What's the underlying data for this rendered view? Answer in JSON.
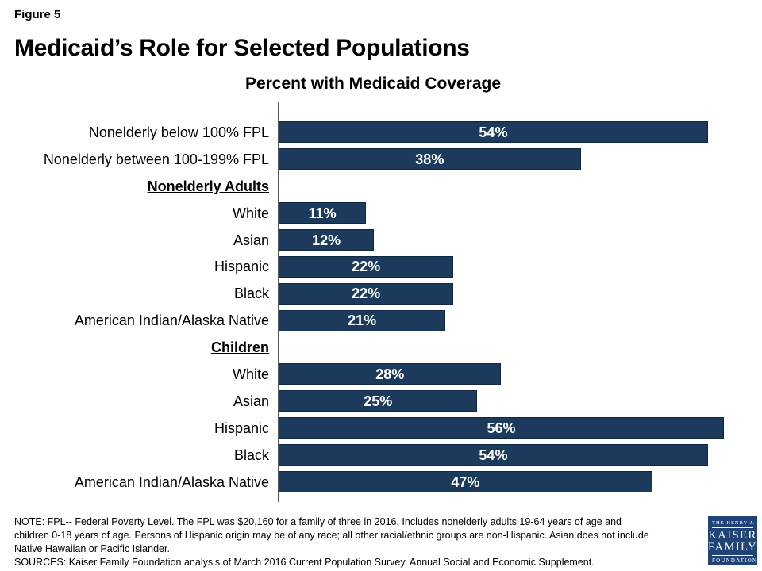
{
  "figure_label": "Figure 5",
  "title": "Medicaid’s Role for Selected Populations",
  "chart_data": {
    "type": "bar",
    "orientation": "horizontal",
    "title": "Percent with Medicaid Coverage",
    "unit": "%",
    "xlim": [
      0,
      60
    ],
    "grid": false,
    "legend": false,
    "bar_color": "#1b3a5c",
    "bar_border_color": "#0f2740",
    "value_labels": "centered-white-bold",
    "rows": [
      {
        "kind": "bar",
        "label": "Nonelderly below 100% FPL",
        "value": 54
      },
      {
        "kind": "bar",
        "label": "Nonelderly between 100-199% FPL",
        "value": 38
      },
      {
        "kind": "header",
        "label": "Nonelderly Adults"
      },
      {
        "kind": "bar",
        "label": "White",
        "value": 11
      },
      {
        "kind": "bar",
        "label": "Asian",
        "value": 12
      },
      {
        "kind": "bar",
        "label": "Hispanic",
        "value": 22
      },
      {
        "kind": "bar",
        "label": "Black",
        "value": 22
      },
      {
        "kind": "bar",
        "label": "American Indian/Alaska Native",
        "value": 21
      },
      {
        "kind": "header",
        "label": "Children"
      },
      {
        "kind": "bar",
        "label": "White",
        "value": 28
      },
      {
        "kind": "bar",
        "label": "Asian",
        "value": 25
      },
      {
        "kind": "bar",
        "label": "Hispanic",
        "value": 56
      },
      {
        "kind": "bar",
        "label": "Black",
        "value": 54
      },
      {
        "kind": "bar",
        "label": "American Indian/Alaska Native",
        "value": 47
      }
    ]
  },
  "notes": {
    "lines": [
      "NOTE: FPL-- Federal Poverty Level. The FPL was $20,160 for a family of three in 2016. Includes nonelderly adults 19-64 years of age and",
      "children 0-18 years of age. Persons of Hispanic origin may be of any race; all other racial/ethnic groups are non-Hispanic. Asian does not include",
      "Native Hawaiian or Pacific Islander.",
      "SOURCES: Kaiser Family Foundation analysis of March 2016 Current Population Survey, Annual Social and Economic Supplement."
    ]
  },
  "logo": {
    "bg": "#1f4277",
    "line1": "THE HENRY J.",
    "line2": "KAISER",
    "line3": "FAMILY",
    "line4": "FOUNDATION"
  }
}
